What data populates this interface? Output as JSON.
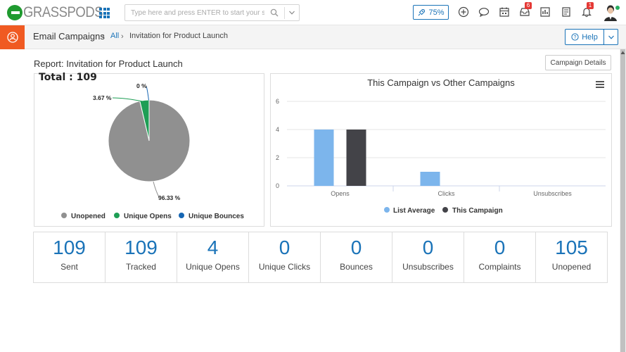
{
  "header": {
    "logo_text": "GRASSPODS",
    "search_placeholder": "Type here and press ENTER to start your search",
    "zoom_label": "75%",
    "inbox_badge": "6",
    "notifications_badge": "1"
  },
  "subbar": {
    "module_title": "Email Campaigns",
    "breadcrumb_all": "All",
    "breadcrumb_current": "Invitation for Product Launch",
    "help_label": "Help"
  },
  "report": {
    "title": "Report: Invitation for Product Launch",
    "details_button": "Campaign Details",
    "total_label": "Total : 109"
  },
  "pie_labels": {
    "unopened_pct": "96.33 %",
    "opens_pct": "3.67 %",
    "bounces_pct": "0 %"
  },
  "chart_data": [
    {
      "type": "pie",
      "title": "Total : 109",
      "series": [
        {
          "name": "Unopened",
          "value": 96.33,
          "color": "#909090"
        },
        {
          "name": "Unique Opens",
          "value": 3.67,
          "color": "#1e9e55"
        },
        {
          "name": "Unique Bounces",
          "value": 0,
          "color": "#1666b3"
        }
      ],
      "legend_position": "bottom"
    },
    {
      "type": "bar",
      "title": "This Campaign vs Other Campaigns",
      "categories": [
        "Opens",
        "Clicks",
        "Unsubscribes"
      ],
      "series": [
        {
          "name": "List Average",
          "values": [
            4,
            1,
            0
          ],
          "color": "#7cb5ec"
        },
        {
          "name": "This Campaign",
          "values": [
            4,
            0,
            0
          ],
          "color": "#434348"
        }
      ],
      "ylim": [
        0,
        6
      ],
      "yticks": [
        0,
        2,
        4,
        6
      ],
      "grid": true,
      "legend_position": "bottom"
    }
  ],
  "stats": [
    {
      "value": "109",
      "label": "Sent"
    },
    {
      "value": "109",
      "label": "Tracked"
    },
    {
      "value": "4",
      "label": "Unique Opens"
    },
    {
      "value": "0",
      "label": "Unique Clicks"
    },
    {
      "value": "0",
      "label": "Bounces"
    },
    {
      "value": "0",
      "label": "Unsubscribes"
    },
    {
      "value": "0",
      "label": "Complaints"
    },
    {
      "value": "105",
      "label": "Unopened"
    }
  ],
  "colors": {
    "accent": "#1a73b8",
    "module": "#f05a22",
    "brand_green": "#1f9a2f"
  }
}
